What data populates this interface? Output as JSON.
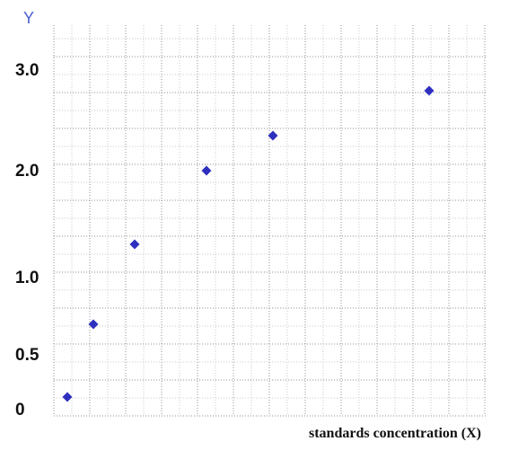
{
  "chart_data": {
    "type": "scatter",
    "title": "",
    "xlabel": "standards concentration (X)",
    "ylabel": "Y",
    "y_tick_labels": [
      "0",
      "0.5",
      "1.0",
      "2.0",
      "3.0"
    ],
    "x_tick_labels": [],
    "grid": true,
    "legend": "none",
    "marker": "diamond",
    "marker_color": "#2f2fbf",
    "points": [
      {
        "x": 0.2,
        "y": 0.0
      },
      {
        "x": 0.5,
        "y": 0.55
      },
      {
        "x": 1.0,
        "y": 1.1
      },
      {
        "x": 2.0,
        "y": 2.0
      },
      {
        "x": 3.0,
        "y": 2.35
      },
      {
        "x": 5.0,
        "y": 2.95
      }
    ]
  },
  "colors": {
    "grid_major": "#909090",
    "grid_minor": "#c8c8c8",
    "axis_letter": "#4a5ed0"
  }
}
